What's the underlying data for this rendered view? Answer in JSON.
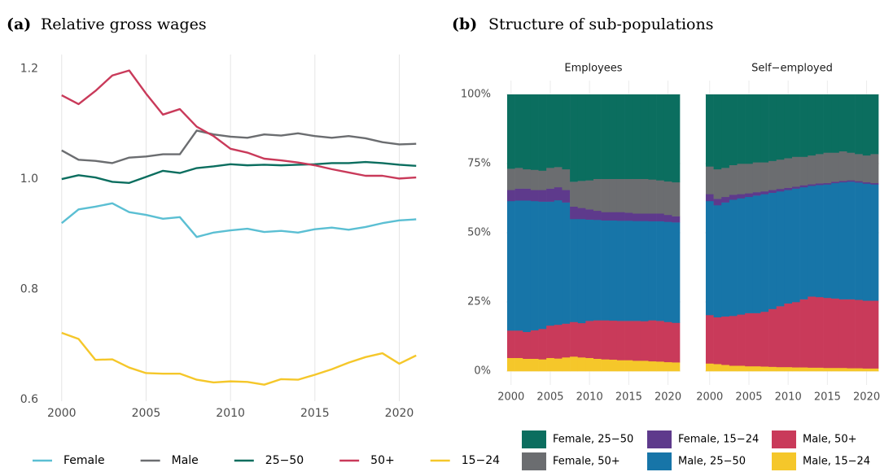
{
  "chart_data": [
    {
      "type": "line",
      "label": "(a)",
      "title": "Relative gross wages",
      "x": [
        2000,
        2001,
        2002,
        2003,
        2004,
        2005,
        2006,
        2007,
        2008,
        2009,
        2010,
        2011,
        2012,
        2013,
        2014,
        2015,
        2016,
        2017,
        2018,
        2019,
        2020,
        2021
      ],
      "xlim": [
        1998.95,
        2022.05
      ],
      "xticks": [
        2000,
        2005,
        2010,
        2015,
        2020
      ],
      "ylim": [
        0.597,
        1.226
      ],
      "yticks": [
        0.6,
        0.8,
        {
          "value": 1,
          "label": "1.0"
        },
        1.2
      ],
      "grid": true,
      "series": [
        {
          "name": "Female",
          "color": "#5bbfd3",
          "values": [
            0.92,
            0.945,
            0.95,
            0.956,
            0.94,
            0.935,
            0.928,
            0.931,
            0.895,
            0.903,
            0.907,
            0.91,
            0.904,
            0.906,
            0.903,
            0.909,
            0.912,
            0.908,
            0.913,
            0.92,
            0.925,
            0.927
          ]
        },
        {
          "name": "Male",
          "color": "#6b6d70",
          "values": [
            1.052,
            1.035,
            1.033,
            1.029,
            1.039,
            1.041,
            1.045,
            1.045,
            1.088,
            1.081,
            1.077,
            1.075,
            1.081,
            1.079,
            1.083,
            1.078,
            1.075,
            1.078,
            1.074,
            1.067,
            1.063,
            1.064
          ]
        },
        {
          "name": "25−50",
          "color": "#0b6e5f",
          "values": [
            1.0,
            1.007,
            1.003,
            0.995,
            0.993,
            1.004,
            1.015,
            1.011,
            1.02,
            1.023,
            1.027,
            1.025,
            1.026,
            1.025,
            1.026,
            1.027,
            1.029,
            1.029,
            1.031,
            1.029,
            1.026,
            1.024
          ]
        },
        {
          "name": "50+",
          "color": "#c93a5a",
          "values": [
            1.152,
            1.136,
            1.16,
            1.188,
            1.197,
            1.155,
            1.117,
            1.127,
            1.095,
            1.078,
            1.055,
            1.048,
            1.037,
            1.034,
            1.03,
            1.025,
            1.018,
            1.012,
            1.006,
            1.006,
            1.001,
            1.003
          ]
        },
        {
          "name": "15−24",
          "color": "#f5c72a",
          "values": [
            0.721,
            0.71,
            0.672,
            0.673,
            0.658,
            0.648,
            0.647,
            0.647,
            0.636,
            0.631,
            0.633,
            0.632,
            0.627,
            0.637,
            0.636,
            0.645,
            0.655,
            0.667,
            0.677,
            0.684,
            0.665,
            0.68
          ]
        }
      ]
    },
    {
      "type": "bar",
      "stacked": true,
      "label": "(b)",
      "title": "Structure of sub-populations",
      "x": [
        2000,
        2001,
        2002,
        2003,
        2004,
        2005,
        2006,
        2007,
        2008,
        2009,
        2010,
        2011,
        2012,
        2013,
        2014,
        2015,
        2016,
        2017,
        2018,
        2019,
        2020,
        2021
      ],
      "xlim": [
        1999.4,
        2021.6
      ],
      "xticks": [
        2000,
        2005,
        2010,
        2015,
        2020
      ],
      "ylim": [
        -5,
        105
      ],
      "yticks": [
        {
          "value": 0,
          "label": "0%"
        },
        {
          "value": 25,
          "label": "25%"
        },
        {
          "value": 50,
          "label": "50%"
        },
        {
          "value": 75,
          "label": "75%"
        },
        {
          "value": 100,
          "label": "100%"
        }
      ],
      "grid": true,
      "series": [
        {
          "name": "Female, 25−50",
          "color": "#0b6e5f"
        },
        {
          "name": "Female, 50+",
          "color": "#6b6d70"
        },
        {
          "name": "Female, 15−24",
          "color": "#5e3a8c"
        },
        {
          "name": "Male, 25−50",
          "color": "#1775a8"
        },
        {
          "name": "Male, 50+",
          "color": "#c93a5a"
        },
        {
          "name": "Male, 15−24",
          "color": "#f5c72a"
        }
      ],
      "facets": [
        {
          "title": "Employees",
          "values": [
            [
              26.8,
              26.5,
              27.0,
              27.2,
              27.5,
              26.5,
              26.2,
              27.0,
              31.5,
              31.2,
              31.0,
              30.5,
              30.5,
              30.5,
              30.5,
              30.5,
              30.5,
              30.5,
              30.7,
              31.0,
              31.4,
              31.7
            ],
            [
              7.7,
              7.5,
              7.0,
              7.3,
              7.0,
              7.5,
              7.3,
              7.5,
              9.0,
              9.8,
              10.5,
              11.5,
              12.0,
              12.0,
              12.0,
              12.2,
              12.5,
              12.5,
              12.3,
              12.0,
              12.1,
              12.3
            ],
            [
              4.0,
              4.3,
              4.3,
              4.0,
              4.2,
              4.7,
              4.7,
              4.5,
              4.5,
              4.0,
              3.7,
              3.3,
              3.0,
              3.0,
              3.1,
              2.9,
              2.7,
              2.7,
              2.8,
              2.8,
              2.5,
              2.2
            ],
            [
              46.8,
              47.0,
              47.5,
              46.7,
              46.0,
              44.8,
              45.0,
              43.8,
              37.2,
              37.6,
              36.6,
              36.3,
              36.1,
              36.2,
              36.2,
              36.2,
              36.1,
              36.2,
              35.8,
              36.0,
              36.2,
              36.3
            ],
            [
              9.9,
              9.9,
              9.7,
              10.3,
              11.0,
              11.7,
              12.2,
              12.2,
              12.5,
              12.4,
              13.4,
              13.9,
              14.1,
              14.1,
              14.2,
              14.2,
              14.4,
              14.3,
              14.8,
              14.7,
              14.5,
              14.3
            ],
            [
              4.8,
              4.8,
              4.5,
              4.5,
              4.3,
              4.8,
              4.6,
              5.0,
              5.3,
              5.0,
              4.8,
              4.5,
              4.3,
              4.2,
              4.0,
              4.0,
              3.8,
              3.8,
              3.6,
              3.5,
              3.3,
              3.2
            ]
          ]
        },
        {
          "title": "Self−employed",
          "values": [
            [
              26.0,
              27.0,
              26.5,
              25.5,
              25.0,
              25.0,
              24.5,
              24.5,
              24.0,
              23.5,
              23.0,
              22.5,
              22.5,
              22.0,
              21.5,
              21.0,
              21.0,
              20.5,
              21.0,
              21.5,
              22.0,
              21.5
            ],
            [
              10.0,
              10.7,
              10.5,
              10.7,
              11.0,
              10.7,
              10.8,
              10.5,
              10.5,
              10.6,
              10.7,
              10.8,
              10.3,
              10.4,
              10.6,
              11.0,
              10.5,
              10.7,
              10.0,
              9.8,
              9.7,
              10.5
            ],
            [
              2.5,
              2.3,
              2.0,
              1.8,
              1.5,
              1.3,
              1.2,
              1.0,
              1.0,
              0.9,
              0.8,
              0.7,
              0.7,
              0.6,
              0.6,
              0.5,
              0.5,
              0.5,
              0.5,
              0.5,
              0.5,
              0.5
            ],
            [
              41.2,
              40.5,
              41.2,
              42.0,
              42.0,
              42.0,
              42.5,
              42.5,
              42.0,
              41.5,
              41.0,
              41.0,
              40.5,
              40.0,
              40.5,
              41.0,
              41.7,
              42.3,
              42.5,
              42.4,
              42.3,
              42.0
            ],
            [
              17.5,
              16.9,
              17.5,
              18.0,
              18.5,
              19.2,
              19.2,
              19.8,
              20.9,
              22.0,
              23.0,
              23.6,
              24.6,
              25.7,
              25.5,
              25.3,
              25.1,
              24.8,
              24.9,
              24.7,
              24.5,
              24.5
            ],
            [
              2.8,
              2.6,
              2.3,
              2.0,
              2.0,
              1.8,
              1.8,
              1.7,
              1.6,
              1.5,
              1.5,
              1.4,
              1.4,
              1.3,
              1.3,
              1.2,
              1.2,
              1.2,
              1.1,
              1.1,
              1.0,
              1.0
            ]
          ]
        }
      ]
    }
  ]
}
